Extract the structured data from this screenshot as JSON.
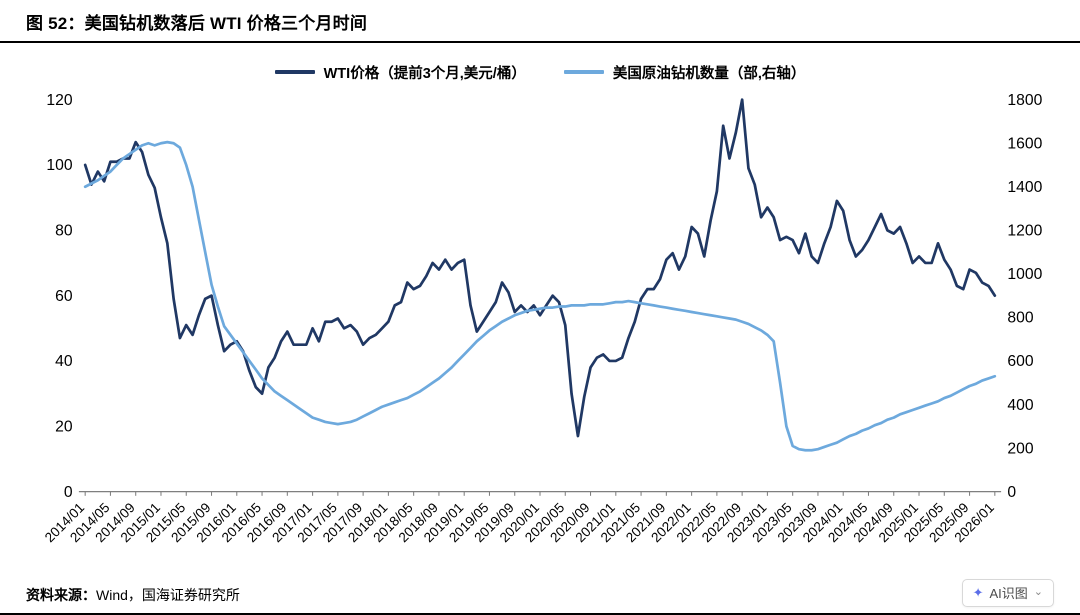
{
  "page": {
    "title": "图 52：美国钻机数落后 WTI 价格三个月时间",
    "source_label": "资料来源：",
    "source_text": "Wind，国海证券研究所",
    "ai_button": {
      "icon": "✦",
      "label": "AI识图",
      "chevron": "⌄"
    }
  },
  "chart_data": {
    "type": "line",
    "title": "美国钻机数落后 WTI 价格三个月时间",
    "legend_position": "top",
    "grid": false,
    "x_range": [
      "2014/01",
      "2026/01"
    ],
    "x_interval": "monthly",
    "x_tick_labels": [
      "2014/01",
      "2014/05",
      "2014/09",
      "2015/01",
      "2015/05",
      "2015/09",
      "2016/01",
      "2016/05",
      "2016/09",
      "2017/01",
      "2017/05",
      "2017/09",
      "2018/01",
      "2018/05",
      "2018/09",
      "2019/01",
      "2019/05",
      "2019/09",
      "2020/01",
      "2020/05",
      "2020/09",
      "2021/01",
      "2021/05",
      "2021/09",
      "2022/01",
      "2022/05",
      "2022/09",
      "2023/01",
      "2023/05",
      "2023/09",
      "2024/01",
      "2024/05",
      "2024/09",
      "2025/01",
      "2025/05",
      "2025/09",
      "2026/01"
    ],
    "left_axis": {
      "min": 0,
      "max": 120,
      "step": 20
    },
    "right_axis": {
      "min": 0,
      "max": 1800,
      "step": 200
    },
    "series": [
      {
        "key": "wti-price-line",
        "name": "WTI价格（提前3个月,美元/桶）",
        "axis": "left",
        "color": "#203864",
        "width": 2.6,
        "values": [
          100,
          94,
          98,
          95,
          101,
          101,
          102,
          102,
          107,
          104,
          97,
          93,
          84,
          76,
          59,
          47,
          51,
          48,
          54,
          59,
          60,
          51,
          43,
          45,
          46,
          43,
          37,
          32,
          30,
          38,
          41,
          46,
          49,
          45,
          45,
          45,
          50,
          46,
          52,
          52,
          53,
          50,
          51,
          49,
          45,
          47,
          48,
          50,
          52,
          57,
          58,
          64,
          62,
          63,
          66,
          70,
          68,
          71,
          68,
          70,
          71,
          57,
          49,
          52,
          55,
          58,
          64,
          61,
          55,
          57,
          55,
          57,
          54,
          57,
          60,
          58,
          51,
          30,
          17,
          29,
          38,
          41,
          42,
          40,
          40,
          41,
          47,
          52,
          59,
          62,
          62,
          65,
          71,
          73,
          68,
          72,
          81,
          79,
          72,
          83,
          92,
          112,
          102,
          110,
          120,
          99,
          94,
          84,
          87,
          84,
          77,
          78,
          77,
          73,
          79,
          72,
          70,
          76,
          81,
          89,
          86,
          77,
          72,
          74,
          77,
          81,
          85,
          80,
          79,
          81,
          76,
          70,
          72,
          70,
          70,
          76,
          71,
          68,
          63,
          62,
          68,
          67,
          64,
          63,
          60
        ]
      },
      {
        "key": "rig-count-line",
        "name": "美国原油钻机数量（部,右轴）",
        "axis": "right",
        "color": "#6da9dd",
        "width": 2.6,
        "values": [
          1400,
          1415,
          1430,
          1450,
          1470,
          1500,
          1530,
          1550,
          1570,
          1590,
          1600,
          1590,
          1600,
          1605,
          1600,
          1580,
          1500,
          1400,
          1250,
          1100,
          950,
          850,
          760,
          720,
          680,
          640,
          600,
          560,
          520,
          490,
          460,
          440,
          420,
          400,
          380,
          360,
          340,
          330,
          320,
          315,
          310,
          315,
          320,
          330,
          345,
          360,
          375,
          390,
          400,
          410,
          420,
          430,
          445,
          460,
          480,
          500,
          520,
          545,
          570,
          600,
          630,
          660,
          690,
          715,
          740,
          760,
          780,
          795,
          810,
          820,
          830,
          835,
          840,
          845,
          845,
          850,
          850,
          855,
          855,
          855,
          860,
          860,
          860,
          865,
          870,
          870,
          875,
          870,
          865,
          860,
          855,
          850,
          845,
          840,
          835,
          830,
          825,
          820,
          815,
          810,
          805,
          800,
          795,
          790,
          780,
          770,
          755,
          740,
          720,
          690,
          500,
          300,
          210,
          195,
          190,
          190,
          195,
          205,
          215,
          225,
          240,
          255,
          265,
          280,
          290,
          305,
          315,
          330,
          340,
          355,
          365,
          375,
          385,
          395,
          405,
          415,
          430,
          440,
          455,
          470,
          485,
          495,
          510,
          520,
          530
        ]
      }
    ]
  }
}
